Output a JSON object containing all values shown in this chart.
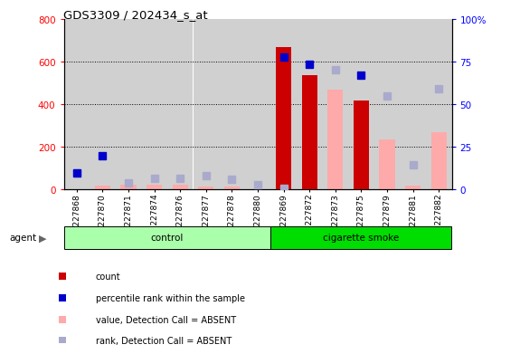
{
  "title": "GDS3309 / 202434_s_at",
  "samples": [
    "GSM227868",
    "GSM227870",
    "GSM227871",
    "GSM227874",
    "GSM227876",
    "GSM227877",
    "GSM227878",
    "GSM227880",
    "GSM227869",
    "GSM227872",
    "GSM227873",
    "GSM227875",
    "GSM227879",
    "GSM227881",
    "GSM227882"
  ],
  "n_control": 8,
  "count_values": [
    null,
    null,
    null,
    null,
    null,
    null,
    null,
    null,
    668,
    535,
    null,
    415,
    null,
    null,
    null
  ],
  "rank_values_pct": [
    9.4,
    19.4,
    null,
    null,
    null,
    null,
    null,
    null,
    77.5,
    73.1,
    null,
    66.9,
    null,
    null,
    null
  ],
  "absent_value_values": [
    null,
    18,
    20,
    20,
    20,
    10,
    10,
    null,
    null,
    null,
    465,
    null,
    235,
    15,
    265
  ],
  "absent_rank_values_pct": [
    9.4,
    null,
    3.8,
    6.3,
    6.3,
    8.1,
    5.6,
    2.5,
    0.6,
    null,
    70.0,
    null,
    54.4,
    14.4,
    58.8
  ],
  "count_color": "#cc0000",
  "rank_color": "#0000cc",
  "absent_value_color": "#ffaaaa",
  "absent_rank_color": "#aaaacc",
  "ylim_left": [
    0,
    800
  ],
  "ylim_right": [
    0,
    100
  ],
  "yticks_left": [
    0,
    200,
    400,
    600,
    800
  ],
  "yticks_right": [
    0,
    25,
    50,
    75,
    100
  ],
  "agent_label": "agent",
  "control_label": "control",
  "smoke_label": "cigarette smoke",
  "legend_items": [
    {
      "label": "count",
      "color": "#cc0000"
    },
    {
      "label": "percentile rank within the sample",
      "color": "#0000cc"
    },
    {
      "label": "value, Detection Call = ABSENT",
      "color": "#ffaaaa"
    },
    {
      "label": "rank, Detection Call = ABSENT",
      "color": "#aaaacc"
    }
  ],
  "bar_width": 0.6,
  "marker_size": 6
}
